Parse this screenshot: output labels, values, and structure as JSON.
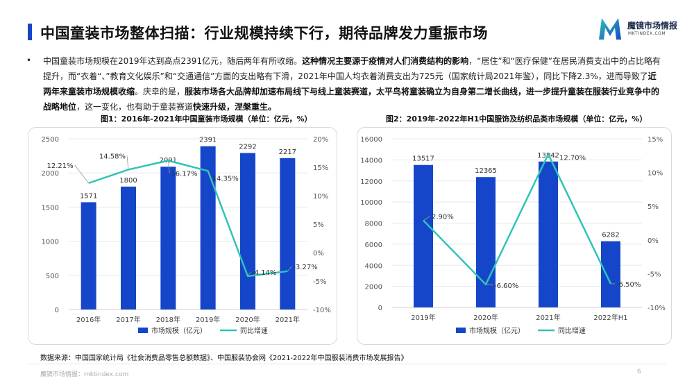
{
  "header": {
    "title": "中国童装市场整体扫描：行业规模持续下行，期待品牌发力重振市场",
    "logo_name": "魔镜市场情报",
    "logo_url": "MKTINDEX.COM"
  },
  "paragraph": {
    "segments": [
      {
        "text": "中国童装市场规模在2019年达到高点2391亿元，随后两年有所收缩。",
        "bold": false
      },
      {
        "text": "这种情况主要源于疫情对人们消费结构的影响",
        "bold": true
      },
      {
        "text": "，“居住”和“医疗保健”在居民消费支出中的占比略有提升，而“衣着“、”教育文化娱乐”和“交通通信”方面的支出略有下滑，2021年中国人均衣着消费支出为725元（国家统计局2021年鉴），同比下降2.3%，进而导致了",
        "bold": false
      },
      {
        "text": "近两年来童装市场规模收缩",
        "bold": true
      },
      {
        "text": "。庆幸的是，",
        "bold": false
      },
      {
        "text": "服装市场各大品牌却加速布局线下与线上童装赛道，太平鸟将童装确立为自身第二增长曲线，进一步提升童装在服装行业竞争中的战略地位",
        "bold": true
      },
      {
        "text": "，这一变化，也有助于童装赛道",
        "bold": false
      },
      {
        "text": "快速升级，涅槃重生。",
        "bold": true
      }
    ]
  },
  "colors": {
    "bar": "#1546c9",
    "line": "#2ec4b6",
    "accent": "#1546c9"
  },
  "chart_data": [
    {
      "type": "bar",
      "title": "图1：2016年-2021年中国童装市场规模（单位：亿元，%）",
      "categories": [
        "2016年",
        "2017年",
        "2018年",
        "2019年",
        "2020年",
        "2021年"
      ],
      "series": [
        {
          "name": "市场规模（亿元）",
          "type": "bar",
          "axis": "left",
          "values": [
            1571,
            1800,
            2091,
            2391,
            2292,
            2217
          ],
          "labels": [
            "1571",
            "1800",
            "2091",
            "2391",
            "2292",
            "2217"
          ]
        },
        {
          "name": "同比增速",
          "type": "line",
          "axis": "right",
          "values": [
            12.21,
            14.58,
            16.17,
            14.35,
            -4.14,
            -3.27
          ],
          "labels": [
            "12.21%",
            "14.58%",
            "16.17%",
            "14.35%",
            "-4.14%",
            "-3.27%"
          ]
        }
      ],
      "ylim": [
        0,
        2500
      ],
      "yticks": [
        "0",
        "500",
        "1000",
        "1500",
        "2000",
        "2500"
      ],
      "y2lim": [
        -10,
        20
      ],
      "y2ticks": [
        "-10%",
        "-5%",
        "0%",
        "5%",
        "10%",
        "15%",
        "20%"
      ],
      "legend": "bottom",
      "grid": true
    },
    {
      "type": "bar",
      "title": "图2：2019年-2022年H1中国服饰及纺织品类市场规模（单位：亿元，%）",
      "categories": [
        "2019年",
        "2020年",
        "2021年",
        "2022年H1"
      ],
      "series": [
        {
          "name": "市场规模（亿元）",
          "type": "bar",
          "axis": "left",
          "values": [
            13517,
            12365,
            13842,
            6282
          ],
          "labels": [
            "13517",
            "12365",
            "13842",
            "6282"
          ]
        },
        {
          "name": "同比增速",
          "type": "line",
          "axis": "right",
          "values": [
            2.9,
            -6.6,
            12.7,
            -6.5
          ],
          "labels": [
            "2.90%",
            "-6.60%",
            "12.70%",
            "-6.50%"
          ]
        }
      ],
      "ylim": [
        0,
        16000
      ],
      "yticks": [
        "0",
        "2000",
        "4000",
        "6000",
        "8000",
        "10000",
        "12000",
        "14000",
        "16000"
      ],
      "y2lim": [
        -10,
        15
      ],
      "y2ticks": [
        "-10%",
        "-5%",
        "0%",
        "5%",
        "10%",
        "15%"
      ],
      "legend": "bottom",
      "grid": true
    }
  ],
  "source": "数据来源：中国国家统计局《社会消费品零售总额数据》、中国服装协会网《2021-2022年中国服装消费市场发展报告》",
  "footer": {
    "site": "魔镜市场情报：mktindex.com",
    "page": "6"
  }
}
